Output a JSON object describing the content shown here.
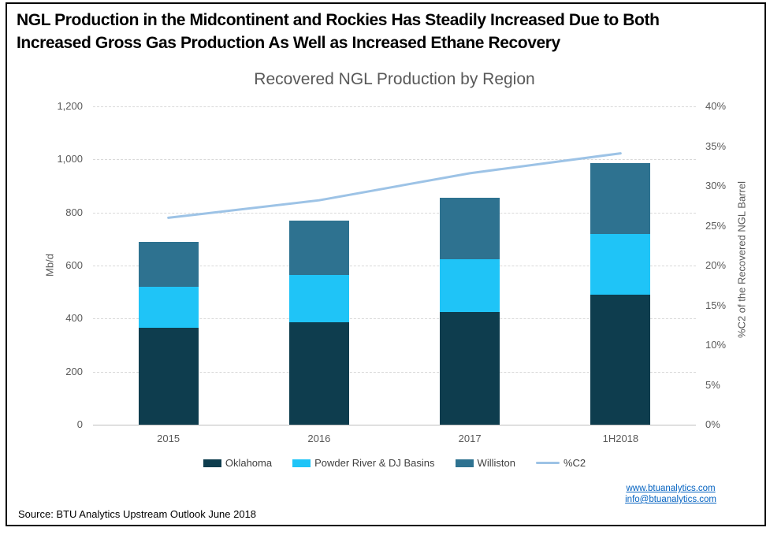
{
  "header": {
    "title_lines": [
      "NGL Production in the Midcontinent and Rockies Has Steadily Increased Due to Both",
      "Increased Gross Gas Production As Well as Increased Ethane Recovery"
    ]
  },
  "chart_data": {
    "type": "bar",
    "subtype": "stacked-bar-with-line",
    "title": "Recovered NGL Production by Region",
    "categories": [
      "2015",
      "2016",
      "2017",
      "1H2018"
    ],
    "series": [
      {
        "name": "Oklahoma",
        "color": "#0e3d4e",
        "values": [
          365,
          385,
          425,
          490
        ]
      },
      {
        "name": "Powder River & DJ Basins",
        "color": "#1fc4f7",
        "values": [
          155,
          180,
          200,
          230
        ]
      },
      {
        "name": "Williston",
        "color": "#2e7290",
        "values": [
          170,
          205,
          230,
          265
        ]
      }
    ],
    "stacked_totals": [
      690,
      770,
      855,
      985
    ],
    "line_series": {
      "name": "%C2",
      "color": "#9dc3e6",
      "axis": "right",
      "values": [
        26,
        28.2,
        31.6,
        34.1
      ]
    },
    "left_axis": {
      "label": "Mb/d",
      "min": 0,
      "max": 1200,
      "step": 200
    },
    "right_axis": {
      "label": "%C2 of the Recovered NGL Barrel",
      "min": 0,
      "max": 40,
      "step": 5,
      "suffix": "%"
    },
    "grid": true,
    "legend_position": "bottom"
  },
  "footer": {
    "source": "Source: BTU Analytics Upstream Outlook June 2018",
    "links": [
      "www.btuanalytics.com",
      "info@btuanalytics.com"
    ]
  },
  "colors": {
    "grid": "#d9d9d9",
    "axis_line": "#bfbfbf",
    "tick_text": "#595959",
    "legend_text": "#404040",
    "link": "#0563c1",
    "border": "#000000"
  }
}
